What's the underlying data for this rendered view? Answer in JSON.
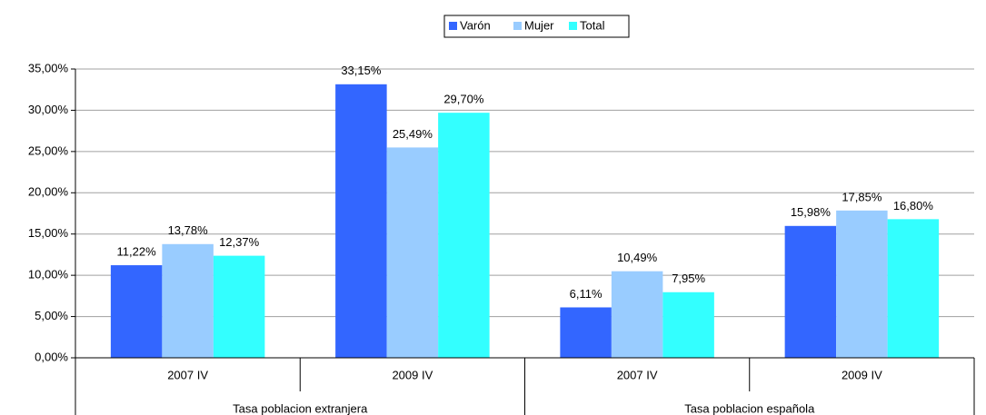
{
  "chart_data": {
    "type": "bar",
    "categories": [
      "2007 IV",
      "2009 IV",
      "2007 IV",
      "2009 IV"
    ],
    "groups": [
      "Tasa poblacion extranjera",
      "Tasa poblacion española"
    ],
    "series": [
      {
        "name": "Varón",
        "color": "#3366ff",
        "values": [
          11.22,
          33.15,
          6.11,
          15.98
        ],
        "value_labels": [
          "11,22%",
          "33,15%",
          "6,11%",
          "15,98%"
        ]
      },
      {
        "name": "Mujer",
        "color": "#99ccff",
        "values": [
          13.78,
          25.49,
          10.49,
          17.85
        ],
        "value_labels": [
          "13,78%",
          "25,49%",
          "10,49%",
          "17,85%"
        ]
      },
      {
        "name": "Total",
        "color": "#33ffff",
        "values": [
          12.37,
          29.7,
          7.95,
          16.8
        ],
        "value_labels": [
          "12,37%",
          "29,70%",
          "7,95%",
          "16,80%"
        ]
      }
    ],
    "ylim": [
      0,
      35
    ],
    "yticks": [
      {
        "value": 0,
        "label": "0,00%"
      },
      {
        "value": 5,
        "label": "5,00%"
      },
      {
        "value": 10,
        "label": "10,00%"
      },
      {
        "value": 15,
        "label": "15,00%"
      },
      {
        "value": 20,
        "label": "20,00%"
      },
      {
        "value": 25,
        "label": "25,00%"
      },
      {
        "value": 30,
        "label": "30,00%"
      },
      {
        "value": 35,
        "label": "35,00%"
      }
    ],
    "grid": true,
    "legend": "top"
  }
}
